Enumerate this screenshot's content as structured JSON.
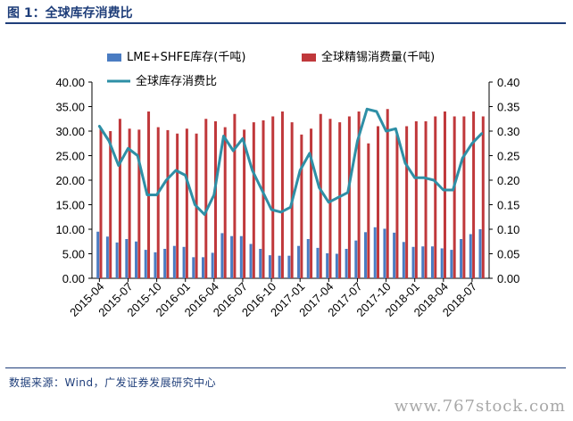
{
  "figure": {
    "label": "图 1：全球库存消费比",
    "source": "数据来源：Wind，广发证券发展研究中心",
    "watermark": "www.767stock.com"
  },
  "chart_data": {
    "type": "bar",
    "x_tick_labels": [
      "2015-04",
      "2015-07",
      "2015-10",
      "2016-01",
      "2016-04",
      "2016-07",
      "2016-10",
      "2017-01",
      "2017-04",
      "2017-07",
      "2017-10",
      "2018-01",
      "2018-04",
      "2018-07"
    ],
    "y_left": {
      "ticks": [
        "0.00",
        "5.00",
        "10.00",
        "15.00",
        "20.00",
        "25.00",
        "30.00",
        "35.00",
        "40.00"
      ],
      "ylim": [
        0,
        40
      ]
    },
    "y_right": {
      "ticks": [
        "0.00",
        "0.05",
        "0.10",
        "0.15",
        "0.20",
        "0.25",
        "0.30",
        "0.35",
        "0.40"
      ],
      "ylim": [
        0,
        0.4
      ]
    },
    "legend_position": "top",
    "series": [
      {
        "name": "LME+SHFE库存(千吨)",
        "kind": "bar",
        "axis": "left",
        "color": "#4a7cc2",
        "values": [
          9.5,
          8.5,
          7.3,
          8.0,
          7.5,
          5.8,
          5.3,
          6.0,
          6.6,
          6.4,
          4.3,
          4.3,
          5.2,
          9.2,
          8.6,
          8.6,
          7.0,
          6.0,
          4.7,
          4.6,
          4.6,
          6.6,
          8.0,
          6.2,
          5.1,
          5.0,
          6.0,
          7.7,
          9.4,
          10.4,
          10.1,
          9.3,
          7.4,
          6.4,
          6.5,
          6.5,
          6.1,
          5.8,
          8.0,
          9.0,
          10.0
        ]
      },
      {
        "name": "全球精锡消费量(千吨)",
        "kind": "bar",
        "axis": "left",
        "color": "#c0383b",
        "values": [
          30.5,
          30.0,
          32.5,
          30.5,
          30.3,
          34.0,
          30.8,
          30.2,
          29.5,
          30.5,
          29.5,
          32.5,
          32.0,
          30.8,
          33.5,
          30.3,
          31.8,
          32.2,
          33.0,
          34.0,
          31.8,
          29.3,
          30.5,
          33.5,
          32.5,
          31.8,
          33.0,
          34.0,
          27.5,
          31.0,
          34.5,
          29.5,
          31.0,
          32.0,
          32.0,
          33.0,
          34.0,
          33.0,
          33.0,
          34.0,
          33.0
        ]
      },
      {
        "name": "全球库存消费比",
        "kind": "line",
        "axis": "right",
        "color": "#2e8fa6",
        "values": [
          0.31,
          0.28,
          0.23,
          0.265,
          0.25,
          0.17,
          0.17,
          0.2,
          0.22,
          0.21,
          0.15,
          0.13,
          0.17,
          0.29,
          0.26,
          0.285,
          0.22,
          0.18,
          0.14,
          0.135,
          0.145,
          0.22,
          0.255,
          0.185,
          0.155,
          0.165,
          0.175,
          0.28,
          0.345,
          0.34,
          0.3,
          0.305,
          0.235,
          0.205,
          0.205,
          0.2,
          0.18,
          0.18,
          0.245,
          0.275,
          0.295
        ]
      }
    ]
  }
}
